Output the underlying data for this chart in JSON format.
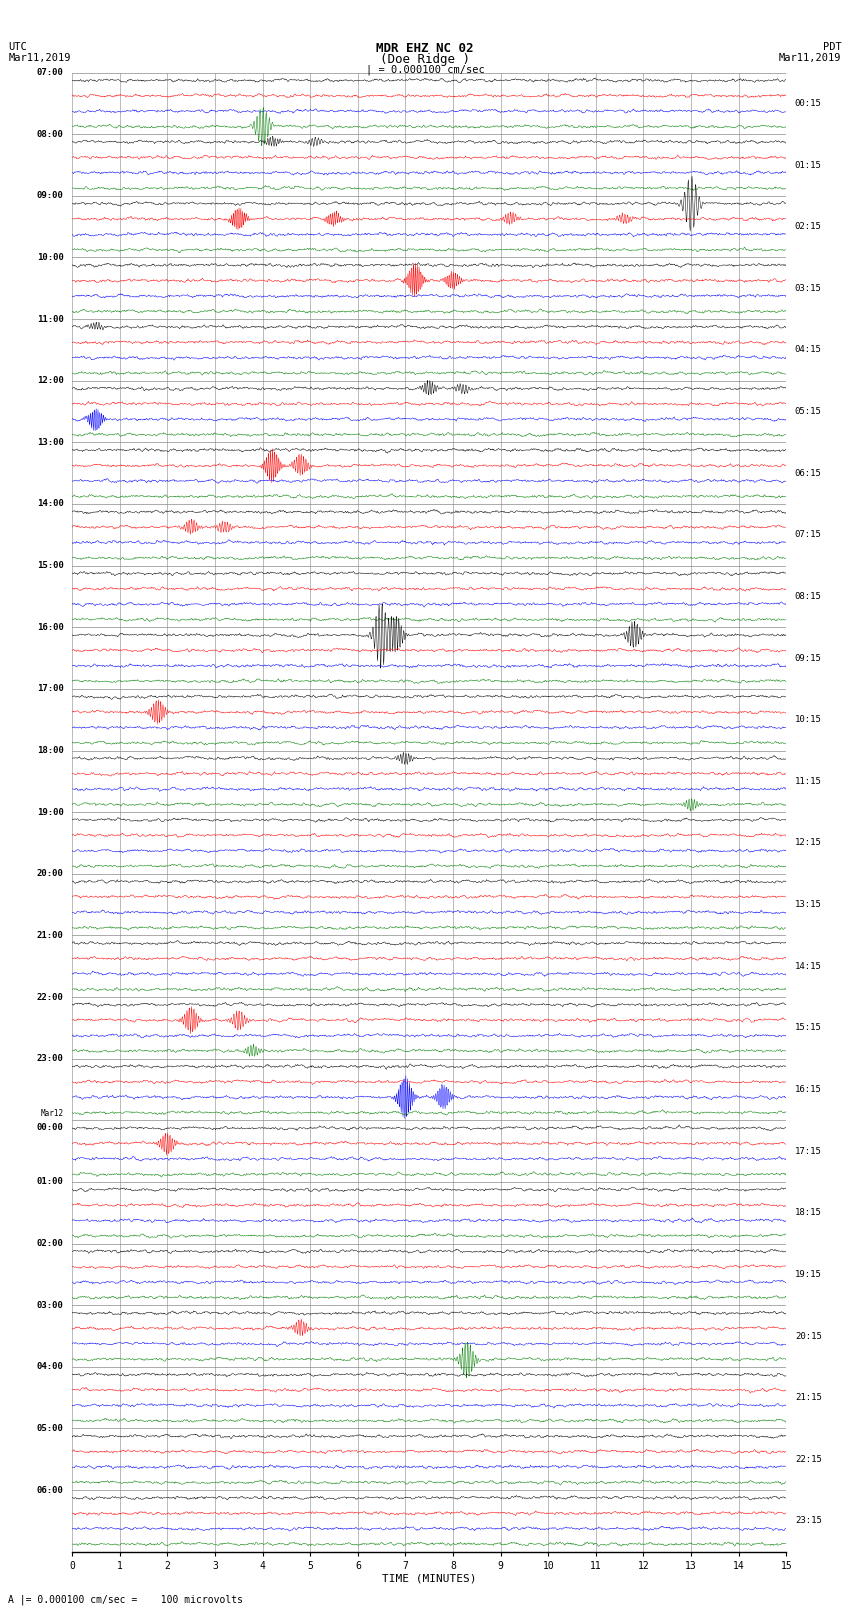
{
  "title_line1": "MDR EHZ NC 02",
  "title_line2": "(Doe Ridge )",
  "scale_label": "= 0.000100 cm/sec",
  "bottom_label": "A |= 0.000100 cm/sec =    100 microvolts",
  "utc_label": "UTC",
  "utc_date": "Mar11,2019",
  "pdt_label": "PDT",
  "pdt_date": "Mar11,2019",
  "xlabel": "TIME (MINUTES)",
  "left_times": [
    "07:00",
    "08:00",
    "09:00",
    "10:00",
    "11:00",
    "12:00",
    "13:00",
    "14:00",
    "15:00",
    "16:00",
    "17:00",
    "18:00",
    "19:00",
    "20:00",
    "21:00",
    "22:00",
    "23:00",
    "Mar12\n00:00",
    "01:00",
    "02:00",
    "03:00",
    "04:00",
    "05:00",
    "06:00"
  ],
  "right_times": [
    "00:15",
    "01:15",
    "02:15",
    "03:15",
    "04:15",
    "05:15",
    "06:15",
    "07:15",
    "08:15",
    "09:15",
    "10:15",
    "11:15",
    "12:15",
    "13:15",
    "14:15",
    "15:15",
    "16:15",
    "17:15",
    "18:15",
    "19:15",
    "20:15",
    "21:15",
    "22:15",
    "23:15"
  ],
  "n_rows": 24,
  "traces_per_row": 4,
  "colors": [
    "black",
    "red",
    "blue",
    "green"
  ],
  "bg_color": "white",
  "noise_amplitude": 0.012,
  "xlim": [
    0,
    15
  ],
  "xticks": [
    0,
    1,
    2,
    3,
    4,
    5,
    6,
    7,
    8,
    9,
    10,
    11,
    12,
    13,
    14,
    15
  ],
  "events": [
    {
      "row": 0,
      "tidx": 3,
      "t": 4.0,
      "amp": 0.32,
      "nf": 12
    },
    {
      "row": 1,
      "tidx": 0,
      "t": 4.2,
      "amp": 0.08,
      "nf": 15
    },
    {
      "row": 1,
      "tidx": 0,
      "t": 5.1,
      "amp": 0.07,
      "nf": 12
    },
    {
      "row": 2,
      "tidx": 1,
      "t": 3.5,
      "amp": 0.18,
      "nf": 20
    },
    {
      "row": 2,
      "tidx": 1,
      "t": 5.5,
      "amp": 0.12,
      "nf": 18
    },
    {
      "row": 2,
      "tidx": 1,
      "t": 9.2,
      "amp": 0.1,
      "nf": 15
    },
    {
      "row": 2,
      "tidx": 1,
      "t": 11.6,
      "amp": 0.09,
      "nf": 14
    },
    {
      "row": 2,
      "tidx": 0,
      "t": 13.0,
      "amp": 0.45,
      "nf": 10
    },
    {
      "row": 3,
      "tidx": 1,
      "t": 7.2,
      "amp": 0.28,
      "nf": 20
    },
    {
      "row": 3,
      "tidx": 1,
      "t": 8.0,
      "amp": 0.15,
      "nf": 18
    },
    {
      "row": 4,
      "tidx": 0,
      "t": 0.5,
      "amp": 0.06,
      "nf": 14
    },
    {
      "row": 5,
      "tidx": 0,
      "t": 7.5,
      "amp": 0.12,
      "nf": 15
    },
    {
      "row": 5,
      "tidx": 0,
      "t": 8.2,
      "amp": 0.08,
      "nf": 13
    },
    {
      "row": 5,
      "tidx": 2,
      "t": 0.5,
      "amp": 0.18,
      "nf": 20
    },
    {
      "row": 6,
      "tidx": 1,
      "t": 4.2,
      "amp": 0.28,
      "nf": 18
    },
    {
      "row": 6,
      "tidx": 1,
      "t": 4.8,
      "amp": 0.18,
      "nf": 16
    },
    {
      "row": 7,
      "tidx": 1,
      "t": 2.5,
      "amp": 0.12,
      "nf": 15
    },
    {
      "row": 7,
      "tidx": 1,
      "t": 3.2,
      "amp": 0.1,
      "nf": 14
    },
    {
      "row": 9,
      "tidx": 0,
      "t": 6.5,
      "amp": 0.55,
      "nf": 12
    },
    {
      "row": 9,
      "tidx": 0,
      "t": 6.8,
      "amp": 0.3,
      "nf": 15
    },
    {
      "row": 9,
      "tidx": 0,
      "t": 11.8,
      "amp": 0.22,
      "nf": 14
    },
    {
      "row": 10,
      "tidx": 1,
      "t": 1.8,
      "amp": 0.2,
      "nf": 16
    },
    {
      "row": 11,
      "tidx": 0,
      "t": 7.0,
      "amp": 0.1,
      "nf": 14
    },
    {
      "row": 11,
      "tidx": 3,
      "t": 13.0,
      "amp": 0.1,
      "nf": 14
    },
    {
      "row": 15,
      "tidx": 1,
      "t": 2.5,
      "amp": 0.22,
      "nf": 16
    },
    {
      "row": 15,
      "tidx": 1,
      "t": 3.5,
      "amp": 0.16,
      "nf": 14
    },
    {
      "row": 15,
      "tidx": 3,
      "t": 3.8,
      "amp": 0.1,
      "nf": 14
    },
    {
      "row": 16,
      "tidx": 2,
      "t": 7.0,
      "amp": 0.35,
      "nf": 20
    },
    {
      "row": 16,
      "tidx": 2,
      "t": 7.8,
      "amp": 0.2,
      "nf": 18
    },
    {
      "row": 17,
      "tidx": 1,
      "t": 2.0,
      "amp": 0.18,
      "nf": 16
    },
    {
      "row": 20,
      "tidx": 3,
      "t": 8.3,
      "amp": 0.3,
      "nf": 14
    },
    {
      "row": 20,
      "tidx": 1,
      "t": 4.8,
      "amp": 0.14,
      "nf": 15
    }
  ]
}
